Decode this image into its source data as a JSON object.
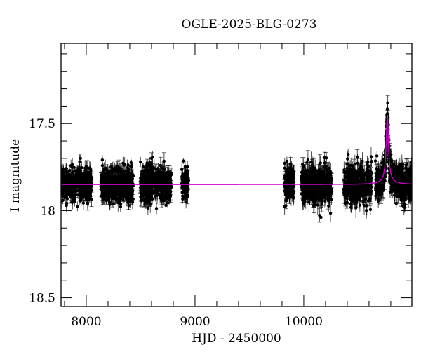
{
  "chart_data": {
    "type": "scatter",
    "title": "OGLE-2025-BLG-0273",
    "xlabel": "HJD - 2450000",
    "ylabel": "I magnitude",
    "xlim": [
      7768,
      10994
    ],
    "ylim": [
      18.55,
      17.04
    ],
    "y_inverted": true,
    "grid": false,
    "legend": null,
    "x_major_ticks": [
      8000,
      9000,
      10000
    ],
    "x_major_tick_labels": [
      "8000",
      "9000",
      "10000"
    ],
    "x_minor_step": 200,
    "y_major_ticks": [
      17.5,
      18,
      18.5
    ],
    "y_major_tick_labels": [
      "17.5",
      "18",
      "18.5"
    ],
    "y_minor_step": 0.1,
    "series": [
      {
        "name": "OGLE I-band photometry",
        "kind": "points-with-errorbars",
        "color": "#000000",
        "baseline_mag": 17.85,
        "seasons": [
          {
            "x_start": 7768,
            "x_end": 8052,
            "mag_center": 17.85,
            "scatter": 0.045,
            "err": 0.03
          },
          {
            "x_start": 8135,
            "x_end": 8432,
            "mag_center": 17.85,
            "scatter": 0.05,
            "err": 0.035
          },
          {
            "x_start": 8497,
            "x_end": 8781,
            "mag_center": 17.85,
            "scatter": 0.05,
            "err": 0.035
          },
          {
            "x_start": 8878,
            "x_end": 8942,
            "mag_center": 17.85,
            "scatter": 0.04,
            "err": 0.03
          },
          {
            "x_start": 9820,
            "x_end": 9910,
            "mag_center": 17.86,
            "scatter": 0.05,
            "err": 0.035
          },
          {
            "x_start": 9980,
            "x_end": 10258,
            "mag_center": 17.84,
            "scatter": 0.05,
            "err": 0.04
          },
          {
            "x_start": 10368,
            "x_end": 10626,
            "mag_center": 17.85,
            "scatter": 0.055,
            "err": 0.04
          },
          {
            "x_start": 10658,
            "x_end": 10994,
            "mag_center": 17.85,
            "scatter": 0.05,
            "err": 0.04
          }
        ]
      },
      {
        "name": "Microlensing model",
        "kind": "line",
        "color": "#cc00cc",
        "baseline_mag": 17.85,
        "peak_hjd": 10768,
        "peak_mag": 17.45,
        "width_days": 22
      }
    ],
    "annotations": []
  }
}
